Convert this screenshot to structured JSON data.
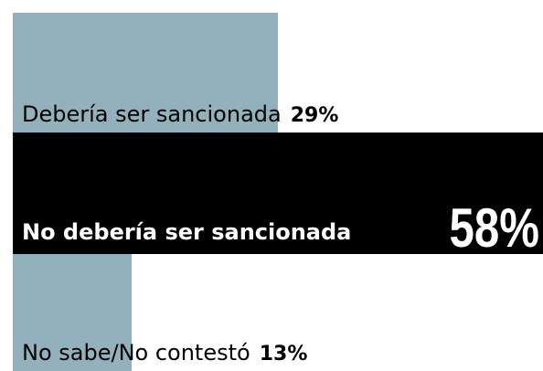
{
  "chart_data": {
    "type": "bar",
    "categories": [
      "Debería ser sancionada",
      "No debería ser sancionada",
      "No sabe/No contestó"
    ],
    "values": [
      29,
      58,
      13
    ],
    "value_labels": [
      "29%",
      "58%",
      "13%"
    ],
    "colors": [
      "#93b1bd",
      "#000000",
      "#93b1bd"
    ],
    "xlim": [
      0,
      58
    ]
  }
}
